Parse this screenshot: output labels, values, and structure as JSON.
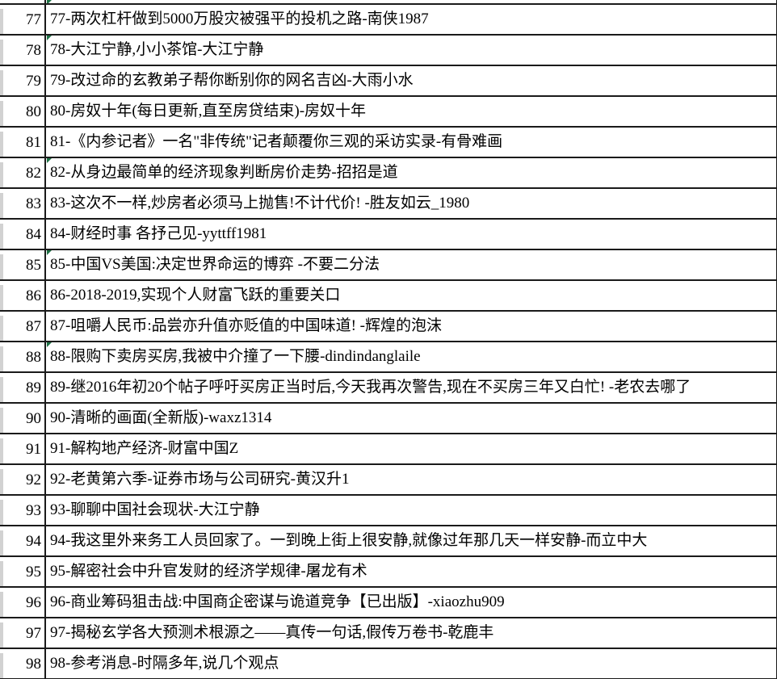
{
  "colors": {
    "grid_line": "#1a1a1a",
    "row_header_gray": "#d2d2d2",
    "error_flag_green": "#1e7145",
    "text": "#000000",
    "background": "#ffffff"
  },
  "top_partial_row": {
    "flag": true
  },
  "rows": [
    {
      "num": "77",
      "text": "77-两次杠杆做到5000万股灾被强平的投机之路-南侠1987",
      "flag": false
    },
    {
      "num": "78",
      "text": "78-大江宁静,小小茶馆-大江宁静",
      "flag": true
    },
    {
      "num": "79",
      "text": "79-改过命的玄教弟子帮你断别你的网名吉凶-大雨小水",
      "flag": false
    },
    {
      "num": "80",
      "text": "80-房奴十年(每日更新,直至房贷结束)-房奴十年",
      "flag": false
    },
    {
      "num": "81",
      "text": "81-《内参记者》一名\"非传统\"记者颠覆你三观的采访实录-有骨难画",
      "flag": false
    },
    {
      "num": "82",
      "text": "82-从身边最简单的经济现象判断房价走势-招招是道",
      "flag": true
    },
    {
      "num": "83",
      "text": "83-这次不一样,炒房者必须马上抛售!不计代价! -胜友如云_1980",
      "flag": false
    },
    {
      "num": "84",
      "text": "84-财经时事 各抒己见-yyttff1981",
      "flag": false
    },
    {
      "num": "85",
      "text": "85-中国VS美国:决定世界命运的博弈 -不要二分法",
      "flag": true
    },
    {
      "num": "86",
      "text": "86-2018-2019,实现个人财富飞跃的重要关口",
      "flag": false
    },
    {
      "num": "87",
      "text": "87-咀嚼人民币:品尝亦升值亦贬值的中国味道! -辉煌的泡沫",
      "flag": false
    },
    {
      "num": "88",
      "text": "88-限购下卖房买房,我被中介撞了一下腰-dindindanglaile",
      "flag": true
    },
    {
      "num": "89",
      "text": "89-继2016年初20个帖子呼吁买房正当时后,今天我再次警告,现在不买房三年又白忙! -老农去哪了",
      "flag": false
    },
    {
      "num": "90",
      "text": "90-清晰的画面(全新版)-waxz1314",
      "flag": false
    },
    {
      "num": "91",
      "text": "91-解构地产经济-财富中国Z",
      "flag": false
    },
    {
      "num": "92",
      "text": "92-老黄第六季-证券市场与公司研究-黄汉升1",
      "flag": false
    },
    {
      "num": "93",
      "text": "93-聊聊中国社会现状-大江宁静",
      "flag": false
    },
    {
      "num": "94",
      "text": "94-我这里外来务工人员回家了。一到晚上街上很安静,就像过年那几天一样安静-而立中大",
      "flag": false
    },
    {
      "num": "95",
      "text": "95-解密社会中升官发财的经济学规律-屠龙有术",
      "flag": false
    },
    {
      "num": "96",
      "text": "96-商业筹码狙击战:中国商企密谋与诡道竞争【已出版】-xiaozhu909",
      "flag": false
    },
    {
      "num": "97",
      "text": "97-揭秘玄学各大预测术根源之——真传一句话,假传万卷书-乾鹿丰",
      "flag": false
    },
    {
      "num": "98",
      "text": "98-参考消息-时隔多年,说几个观点",
      "flag": false
    }
  ]
}
